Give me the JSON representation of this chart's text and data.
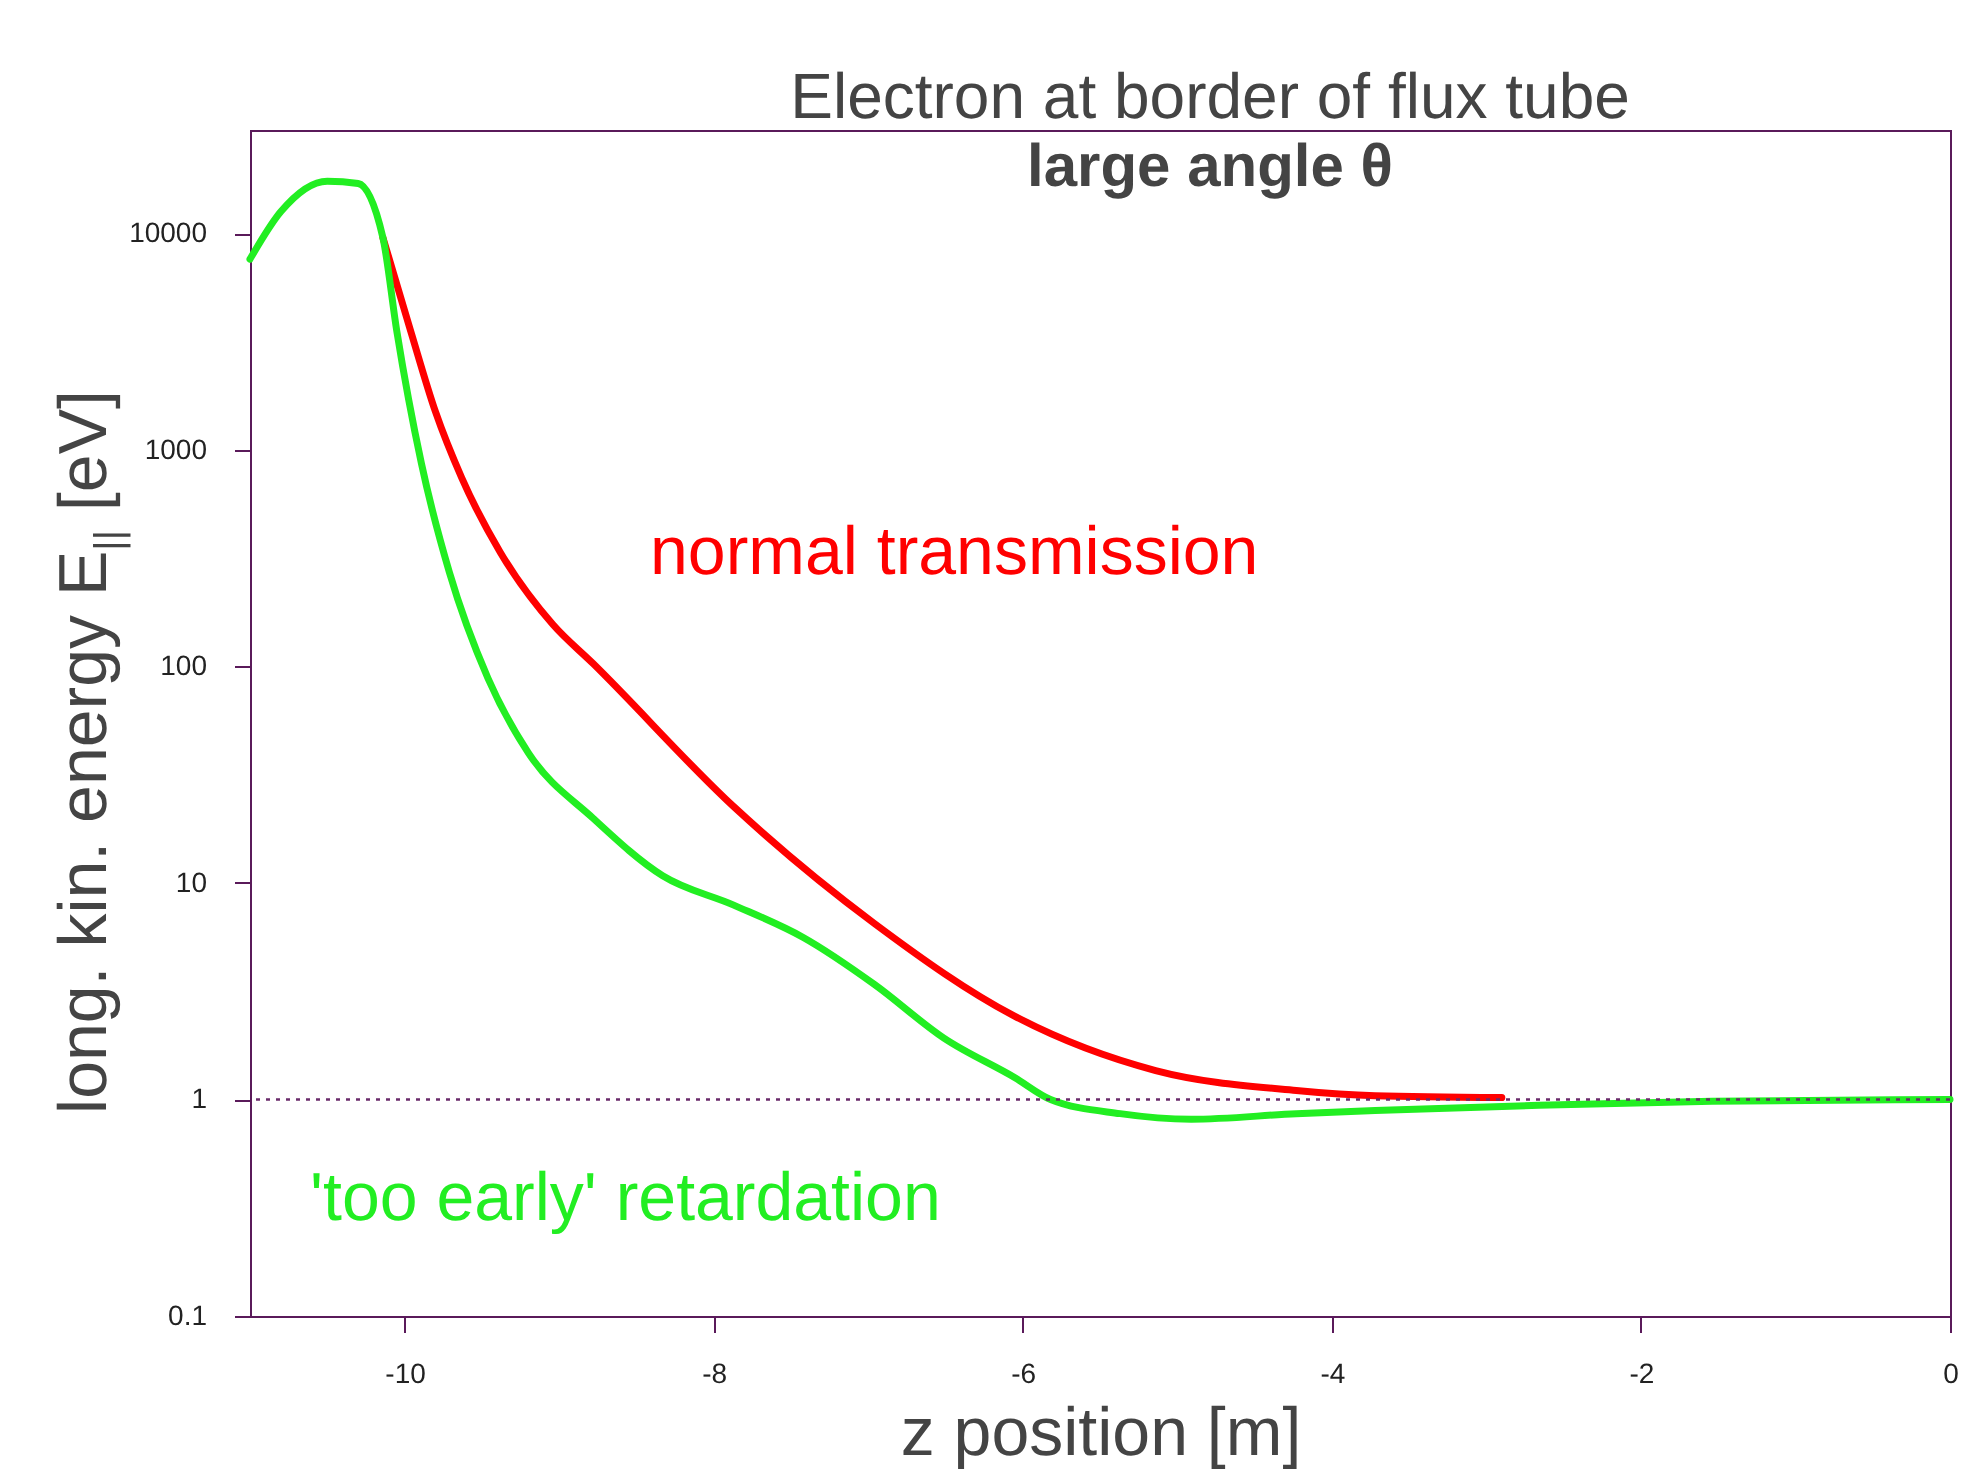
{
  "chart_data": {
    "type": "line",
    "title": "Electron at border of flux tube",
    "subtitle": "large angle θ",
    "xlabel": "z position [m]",
    "ylabel": "long. kin. energy E$_{||}$ [eV]",
    "log": "y",
    "xlim": [
      -11,
      0
    ],
    "xticks": [
      -10,
      -8,
      -6,
      -4,
      -2,
      0
    ],
    "ylim": [
      0.1,
      30000
    ],
    "yticks": [
      0.1,
      1,
      10,
      100,
      1000,
      10000
    ],
    "ref_lines": [
      {
        "axis": "y",
        "value": 1,
        "color": "#6a2a6a",
        "line_style": "dotted"
      }
    ],
    "series": [
      {
        "name": "normal transmission",
        "color": "#ff0000",
        "x": [
          -10.14,
          -9.96,
          -9.8,
          -9.63,
          -9.38,
          -9.04,
          -8.78,
          -7.87,
          -6.96,
          -6.05,
          -5.14,
          -4.23,
          -3.72,
          -2.9
        ],
        "values": [
          9550,
          3530,
          1500,
          742,
          336,
          156,
          103,
          22.5,
          6.5,
          2.42,
          1.36,
          1.1,
          1.04,
          1.02
        ]
      },
      {
        "name": "'too early' retardation",
        "color": "#22ee22",
        "x": [
          -11,
          -10.8,
          -10.5,
          -10.3,
          -10.14,
          -10.05,
          -9.89,
          -9.71,
          -9.46,
          -9.2,
          -8.78,
          -8.33,
          -7.87,
          -7.42,
          -6.96,
          -6.51,
          -6.05,
          -5.82,
          -5.37,
          -4.91,
          -4.23,
          -3.72,
          -2.66,
          -1.54,
          0
        ],
        "values": [
          7600,
          12600,
          17400,
          17000,
          9550,
          3530,
          860,
          272,
          88,
          40,
          19.9,
          10.8,
          7.9,
          5.6,
          3.4,
          1.92,
          1.26,
          1.0,
          0.86,
          0.81,
          0.86,
          0.89,
          0.94,
          0.98,
          1.0
        ]
      }
    ]
  }
}
